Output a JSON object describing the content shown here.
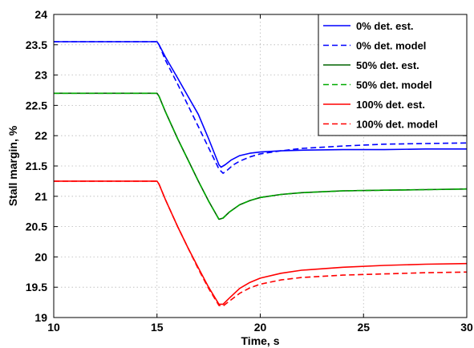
{
  "chart_data": {
    "type": "line",
    "title": "",
    "xlabel": "Time, s",
    "ylabel": "Stall margin, %",
    "xlim": [
      10,
      30
    ],
    "ylim": [
      19,
      24
    ],
    "xticks": [
      10,
      15,
      20,
      25,
      30
    ],
    "yticks": [
      19,
      19.5,
      20,
      20.5,
      21,
      21.5,
      22,
      22.5,
      23,
      23.5,
      24
    ],
    "grid": true,
    "legend_position": "top-right",
    "series": [
      {
        "name": "0% det. est.",
        "color": "#0000ff",
        "dash": "solid",
        "x": [
          10,
          15,
          15.1,
          15.4,
          16,
          16.5,
          17,
          17.5,
          18,
          18.1,
          18.3,
          18.6,
          19,
          19.5,
          20,
          21,
          22,
          24,
          26,
          28,
          30
        ],
        "y": [
          23.55,
          23.55,
          23.5,
          23.3,
          22.95,
          22.65,
          22.35,
          21.95,
          21.52,
          21.48,
          21.52,
          21.6,
          21.67,
          21.71,
          21.73,
          21.75,
          21.76,
          21.77,
          21.77,
          21.78,
          21.78
        ]
      },
      {
        "name": "0% det. model",
        "color": "#0000ff",
        "dash": "dashed",
        "x": [
          10,
          15,
          15.1,
          15.4,
          16,
          16.5,
          17,
          17.5,
          18,
          18.2,
          18.4,
          18.7,
          19,
          19.5,
          20,
          21,
          22,
          24,
          26,
          28,
          30
        ],
        "y": [
          23.55,
          23.55,
          23.5,
          23.25,
          22.85,
          22.5,
          22.15,
          21.8,
          21.45,
          21.38,
          21.43,
          21.52,
          21.58,
          21.65,
          21.7,
          21.75,
          21.79,
          21.83,
          21.86,
          21.87,
          21.88
        ]
      },
      {
        "name": "50% det. est.",
        "color": "#006400",
        "dash": "solid",
        "x": [
          10,
          15,
          15.1,
          15.4,
          16,
          16.5,
          17,
          17.5,
          18,
          18.2,
          18.5,
          19,
          19.5,
          20,
          21,
          22,
          24,
          26,
          28,
          30
        ],
        "y": [
          22.7,
          22.7,
          22.65,
          22.4,
          21.95,
          21.6,
          21.25,
          20.92,
          20.62,
          20.64,
          20.74,
          20.86,
          20.93,
          20.98,
          21.03,
          21.06,
          21.09,
          21.1,
          21.11,
          21.12
        ]
      },
      {
        "name": "50% det. model",
        "color": "#00aa00",
        "dash": "dashed",
        "x": [
          10,
          15,
          15.1,
          15.4,
          16,
          16.5,
          17,
          17.5,
          18,
          18.2,
          18.5,
          19,
          19.5,
          20,
          21,
          22,
          24,
          26,
          28,
          30
        ],
        "y": [
          22.7,
          22.7,
          22.65,
          22.4,
          21.95,
          21.6,
          21.25,
          20.92,
          20.62,
          20.64,
          20.74,
          20.86,
          20.93,
          20.98,
          21.03,
          21.06,
          21.09,
          21.1,
          21.11,
          21.12
        ]
      },
      {
        "name": "100% det. est.",
        "color": "#ff0000",
        "dash": "solid",
        "x": [
          10,
          15,
          15.1,
          15.4,
          16,
          16.5,
          17,
          17.5,
          18,
          18.2,
          18.5,
          19,
          19.5,
          20,
          21,
          22,
          24,
          26,
          28,
          30
        ],
        "y": [
          21.25,
          21.25,
          21.2,
          20.95,
          20.5,
          20.15,
          19.82,
          19.5,
          19.22,
          19.22,
          19.32,
          19.48,
          19.58,
          19.65,
          19.73,
          19.78,
          19.83,
          19.86,
          19.88,
          19.89
        ]
      },
      {
        "name": "100% det. model",
        "color": "#ff0000",
        "dash": "dashed",
        "x": [
          10,
          15,
          15.1,
          15.4,
          16,
          16.5,
          17,
          17.5,
          18,
          18.2,
          18.5,
          19,
          19.5,
          20,
          21,
          22,
          24,
          26,
          28,
          30
        ],
        "y": [
          21.25,
          21.25,
          21.2,
          20.95,
          20.5,
          20.15,
          19.8,
          19.48,
          19.2,
          19.19,
          19.27,
          19.4,
          19.49,
          19.55,
          19.62,
          19.66,
          19.7,
          19.72,
          19.74,
          19.75
        ]
      }
    ]
  }
}
